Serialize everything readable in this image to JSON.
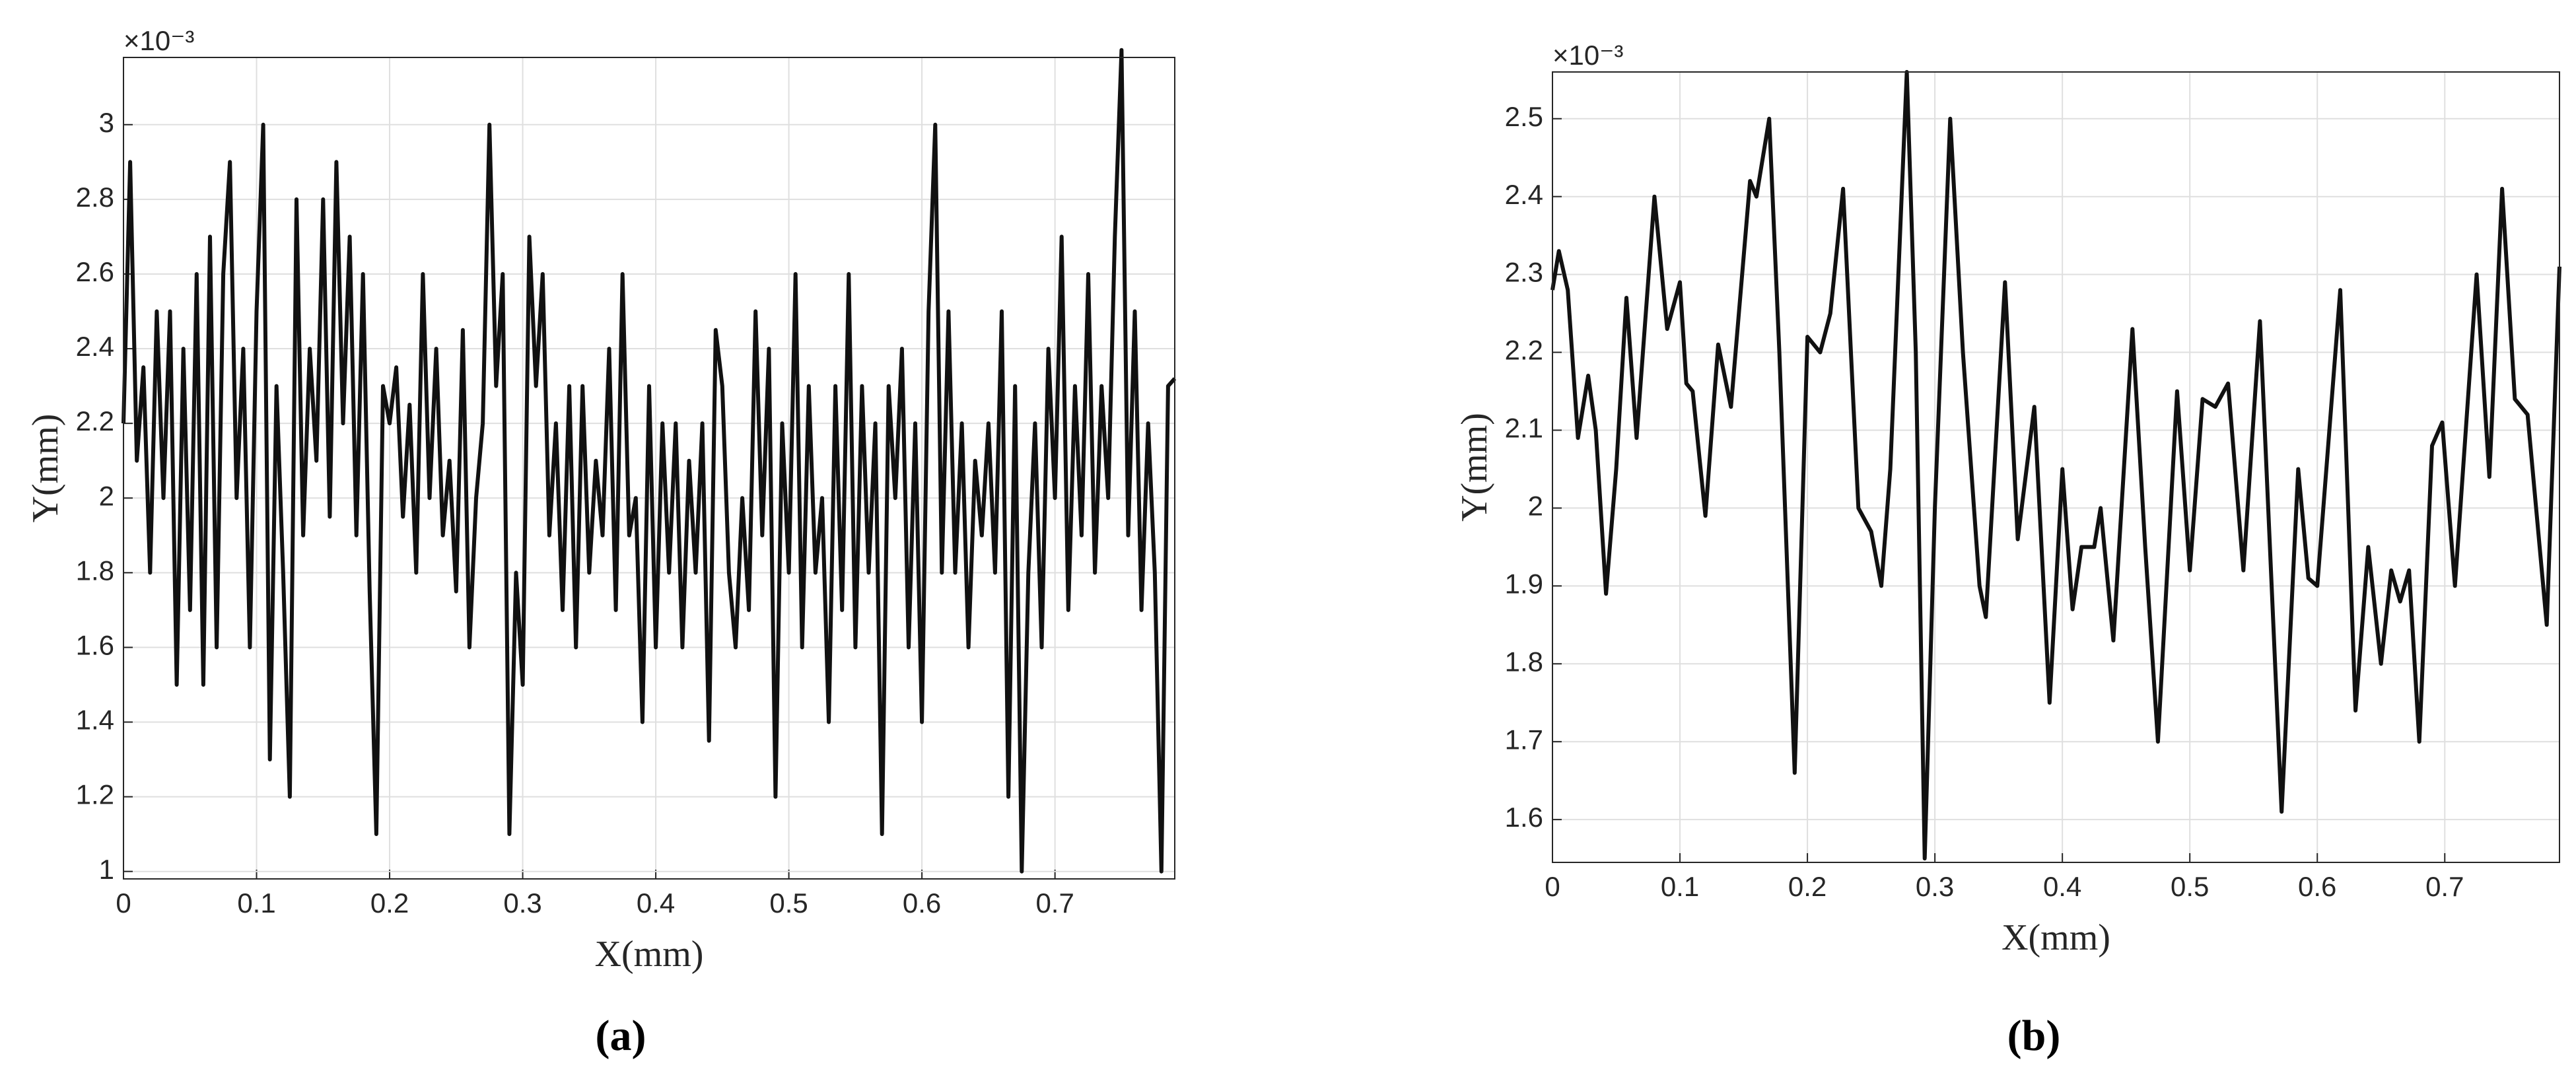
{
  "chart_data": [
    {
      "type": "line",
      "caption": "(a)",
      "xlabel": "X(mm)",
      "ylabel": "Y(mm)",
      "y_multiplier": "×10⁻³",
      "xlim": [
        0,
        0.79
      ],
      "ylim": [
        0.98,
        3.18
      ],
      "xticks": [
        0,
        0.1,
        0.2,
        0.3,
        0.4,
        0.5,
        0.6,
        0.7
      ],
      "yticks": [
        1,
        1.2,
        1.4,
        1.6,
        1.8,
        2,
        2.2,
        2.4,
        2.6,
        2.8,
        3
      ],
      "grid": true,
      "x": [
        0,
        0.005,
        0.01,
        0.015,
        0.02,
        0.025,
        0.03,
        0.035,
        0.04,
        0.045,
        0.05,
        0.055,
        0.06,
        0.065,
        0.07,
        0.075,
        0.08,
        0.085,
        0.09,
        0.095,
        0.1,
        0.105,
        0.11,
        0.115,
        0.12,
        0.125,
        0.13,
        0.135,
        0.14,
        0.145,
        0.15,
        0.155,
        0.16,
        0.165,
        0.17,
        0.175,
        0.18,
        0.185,
        0.19,
        0.195,
        0.2,
        0.205,
        0.21,
        0.215,
        0.22,
        0.225,
        0.23,
        0.235,
        0.24,
        0.245,
        0.25,
        0.255,
        0.26,
        0.265,
        0.27,
        0.275,
        0.28,
        0.285,
        0.29,
        0.295,
        0.3,
        0.305,
        0.31,
        0.315,
        0.32,
        0.325,
        0.33,
        0.335,
        0.34,
        0.345,
        0.35,
        0.355,
        0.36,
        0.365,
        0.37,
        0.375,
        0.38,
        0.385,
        0.39,
        0.395,
        0.4,
        0.405,
        0.41,
        0.415,
        0.42,
        0.425,
        0.43,
        0.435,
        0.44,
        0.445,
        0.45,
        0.455,
        0.46,
        0.465,
        0.47,
        0.475,
        0.48,
        0.485,
        0.49,
        0.495,
        0.5,
        0.505,
        0.51,
        0.515,
        0.52,
        0.525,
        0.53,
        0.535,
        0.54,
        0.545,
        0.55,
        0.555,
        0.56,
        0.565,
        0.57,
        0.575,
        0.58,
        0.585,
        0.59,
        0.595,
        0.6,
        0.605,
        0.61,
        0.615,
        0.62,
        0.625,
        0.63,
        0.635,
        0.64,
        0.645,
        0.65,
        0.655,
        0.66,
        0.665,
        0.67,
        0.675,
        0.68,
        0.685,
        0.69,
        0.695,
        0.7,
        0.705,
        0.71,
        0.715,
        0.72,
        0.725,
        0.73,
        0.735,
        0.74,
        0.745,
        0.75,
        0.755,
        0.76,
        0.765,
        0.77,
        0.775,
        0.78,
        0.785,
        0.79
      ],
      "series": [
        {
          "color": "#111111",
          "values": [
            2.2,
            2.9,
            2.1,
            2.35,
            1.8,
            2.5,
            2.0,
            2.5,
            1.5,
            2.4,
            1.7,
            2.6,
            1.5,
            2.7,
            1.6,
            2.6,
            2.9,
            2.0,
            2.4,
            1.6,
            2.5,
            3.0,
            1.3,
            2.3,
            1.8,
            1.2,
            2.8,
            1.9,
            2.4,
            2.1,
            2.8,
            1.95,
            2.9,
            2.2,
            2.7,
            1.9,
            2.6,
            1.75,
            1.1,
            2.3,
            2.2,
            2.35,
            1.95,
            2.25,
            1.8,
            2.6,
            2.0,
            2.4,
            1.9,
            2.1,
            1.75,
            2.45,
            1.6,
            2.0,
            2.2,
            3.0,
            2.3,
            2.6,
            1.1,
            1.8,
            1.5,
            2.7,
            2.3,
            2.6,
            1.9,
            2.2,
            1.7,
            2.3,
            1.6,
            2.3,
            1.8,
            2.1,
            1.9,
            2.4,
            1.7,
            2.6,
            1.9,
            2.0,
            1.4,
            2.3,
            1.6,
            2.2,
            1.8,
            2.2,
            1.6,
            2.1,
            1.8,
            2.2,
            1.35,
            2.45,
            2.3,
            1.8,
            1.6,
            2.0,
            1.7,
            2.5,
            1.9,
            2.4,
            1.2,
            2.2,
            1.8,
            2.6,
            1.6,
            2.3,
            1.8,
            2.0,
            1.4,
            2.3,
            1.7,
            2.6,
            1.6,
            2.3,
            1.8,
            2.2,
            1.1,
            2.3,
            2.0,
            2.4,
            1.6,
            2.2,
            1.4,
            2.5,
            3.0,
            1.8,
            2.5,
            1.8,
            2.2,
            1.6,
            2.1,
            1.9,
            2.2,
            1.8,
            2.5,
            1.2,
            2.3,
            1.0,
            1.8,
            2.2,
            1.6,
            2.4,
            2.0,
            2.7,
            1.7,
            2.3,
            1.9,
            2.6,
            1.8,
            2.3,
            2.0,
            2.7,
            3.2,
            1.9,
            2.5,
            1.7,
            2.2,
            1.8,
            1.0,
            2.3,
            2.32
          ]
        }
      ]
    },
    {
      "type": "line",
      "caption": "(b)",
      "xlabel": "X(mm)",
      "ylabel": "Y(mm)",
      "y_multiplier": "×10⁻³",
      "xlim": [
        0,
        0.79
      ],
      "ylim": [
        1.545,
        2.56
      ],
      "xticks": [
        0,
        0.1,
        0.2,
        0.3,
        0.4,
        0.5,
        0.6,
        0.7
      ],
      "yticks": [
        1.6,
        1.7,
        1.8,
        1.9,
        2,
        2.1,
        2.2,
        2.3,
        2.4,
        2.5
      ],
      "grid": true,
      "x": [
        0,
        0.005,
        0.012,
        0.02,
        0.028,
        0.034,
        0.042,
        0.05,
        0.058,
        0.066,
        0.08,
        0.09,
        0.1,
        0.105,
        0.11,
        0.12,
        0.13,
        0.14,
        0.155,
        0.16,
        0.17,
        0.178,
        0.19,
        0.2,
        0.21,
        0.218,
        0.228,
        0.24,
        0.25,
        0.258,
        0.265,
        0.278,
        0.285,
        0.292,
        0.3,
        0.312,
        0.322,
        0.335,
        0.34,
        0.355,
        0.365,
        0.378,
        0.39,
        0.4,
        0.408,
        0.415,
        0.425,
        0.43,
        0.44,
        0.455,
        0.465,
        0.475,
        0.49,
        0.5,
        0.51,
        0.52,
        0.53,
        0.542,
        0.555,
        0.572,
        0.585,
        0.593,
        0.6,
        0.618,
        0.63,
        0.64,
        0.65,
        0.658,
        0.665,
        0.672,
        0.68,
        0.69,
        0.698,
        0.708,
        0.725,
        0.735,
        0.745,
        0.755,
        0.765,
        0.78,
        0.79
      ],
      "series": [
        {
          "color": "#111111",
          "values": [
            2.28,
            2.33,
            2.28,
            2.09,
            2.17,
            2.1,
            1.89,
            2.05,
            2.27,
            2.09,
            2.4,
            2.23,
            2.29,
            2.16,
            2.15,
            1.99,
            2.21,
            2.13,
            2.42,
            2.4,
            2.5,
            2.2,
            1.66,
            2.22,
            2.2,
            2.25,
            2.41,
            2.0,
            1.97,
            1.9,
            2.05,
            2.56,
            2.2,
            1.55,
            2.0,
            2.5,
            2.2,
            1.9,
            1.86,
            2.29,
            1.96,
            2.13,
            1.75,
            2.05,
            1.87,
            1.95,
            1.95,
            2.0,
            1.83,
            2.23,
            1.95,
            1.7,
            2.15,
            1.92,
            2.14,
            2.13,
            2.16,
            1.92,
            2.24,
            1.61,
            2.05,
            1.91,
            1.9,
            2.28,
            1.74,
            1.95,
            1.8,
            1.92,
            1.88,
            1.92,
            1.7,
            2.08,
            2.11,
            1.9,
            2.3,
            2.04,
            2.41,
            2.14,
            2.12,
            1.85,
            2.31
          ]
        }
      ]
    }
  ]
}
